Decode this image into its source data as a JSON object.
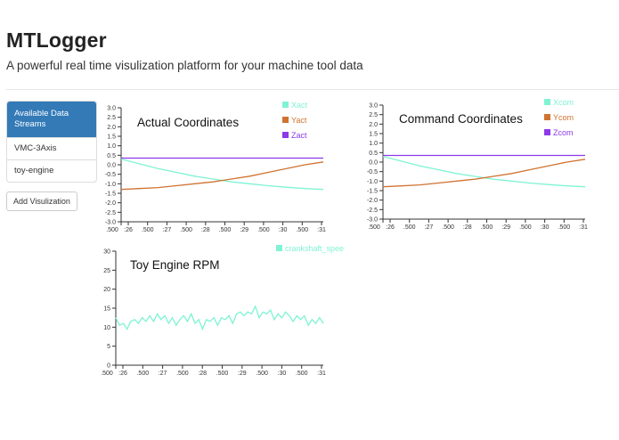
{
  "header": {
    "title": "MTLogger",
    "subtitle": "A powerful real time visulization platform for your machine tool data"
  },
  "sidebar": {
    "active_label": "Available Data Streams",
    "items": [
      {
        "label": "VMC-3Axis"
      },
      {
        "label": "toy-engine"
      }
    ],
    "add_button_label": "Add Visulization"
  },
  "colors": {
    "accent": "#337ab7",
    "cyan": "#7ff3d3",
    "orange": "#d07331",
    "purple": "#8b3be8"
  },
  "chart_data": [
    {
      "id": "actual",
      "type": "line",
      "title": "Actual Coordinates",
      "ylim": [
        -3.0,
        3.0
      ],
      "yticks": [
        "3.0",
        "2.5",
        "2.0",
        "1.5",
        "1.0",
        "0.5",
        "0.0",
        "-0.5",
        "-1.0",
        "-1.5",
        "-2.0",
        "-2.5",
        "-3.0"
      ],
      "xticks": [
        ":26",
        ".500",
        ":27",
        ".500",
        ":28",
        ".500",
        ":29",
        ".500",
        ":30",
        ".500",
        ":31"
      ],
      "x_origin_label": ".500",
      "series": [
        {
          "name": "Xact",
          "color": "#7ff3d3",
          "values": [
            0.3,
            0.05,
            -0.2,
            -0.4,
            -0.6,
            -0.75,
            -0.9,
            -1.0,
            -1.1,
            -1.18,
            -1.25,
            -1.3
          ]
        },
        {
          "name": "Yact",
          "color": "#d07331",
          "values": [
            -1.3,
            -1.25,
            -1.2,
            -1.1,
            -1.0,
            -0.9,
            -0.75,
            -0.6,
            -0.4,
            -0.2,
            0.0,
            0.15
          ]
        },
        {
          "name": "Zact",
          "color": "#8b3be8",
          "values": [
            0.35,
            0.35,
            0.35,
            0.35,
            0.35,
            0.35,
            0.35,
            0.35,
            0.35,
            0.35,
            0.35,
            0.35
          ]
        }
      ]
    },
    {
      "id": "command",
      "type": "line",
      "title": "Command Coordinates",
      "ylim": [
        -3.0,
        3.0
      ],
      "yticks": [
        "3.0",
        "2.5",
        "2.0",
        "1.5",
        "1.0",
        "0.5",
        "0.0",
        "-0.5",
        "-1.0",
        "-1.5",
        "-2.0",
        "-2.5",
        "-3.0"
      ],
      "xticks": [
        ":26",
        ".500",
        ":27",
        ".500",
        ":28",
        ".500",
        ":29",
        ".500",
        ":30",
        ".500",
        ":31"
      ],
      "x_origin_label": ".500",
      "series": [
        {
          "name": "Xcom",
          "color": "#7ff3d3",
          "values": [
            0.3,
            0.05,
            -0.2,
            -0.4,
            -0.6,
            -0.75,
            -0.9,
            -1.0,
            -1.1,
            -1.18,
            -1.25,
            -1.3
          ]
        },
        {
          "name": "Ycom",
          "color": "#d07331",
          "values": [
            -1.3,
            -1.25,
            -1.2,
            -1.1,
            -1.0,
            -0.9,
            -0.75,
            -0.6,
            -0.4,
            -0.2,
            0.0,
            0.15
          ]
        },
        {
          "name": "Zcom",
          "color": "#8b3be8",
          "values": [
            0.35,
            0.35,
            0.35,
            0.35,
            0.35,
            0.35,
            0.35,
            0.35,
            0.35,
            0.35,
            0.35,
            0.35
          ]
        }
      ]
    },
    {
      "id": "rpm",
      "type": "line",
      "title": "Toy Engine RPM",
      "ylim": [
        0,
        30
      ],
      "yticks": [
        "30",
        "25",
        "20",
        "15",
        "10",
        "5",
        "0"
      ],
      "xticks": [
        ":26",
        ".500",
        ":27",
        ".500",
        ":28",
        ".500",
        ":29",
        ".500",
        ":30",
        ".500",
        ":31"
      ],
      "x_origin_label": ".500",
      "series": [
        {
          "name": "crankshaft_spee",
          "color": "#7ff3d3",
          "values": [
            12.5,
            10.5,
            11,
            9.5,
            11.5,
            12,
            11,
            12.5,
            11.5,
            13,
            11.5,
            13.5,
            12,
            13,
            11,
            12.5,
            10.5,
            12,
            13,
            11.5,
            13.5,
            11,
            12,
            9.5,
            12,
            11.5,
            12.5,
            10.5,
            12.5,
            12,
            13,
            11,
            13.5,
            14,
            13,
            14,
            13.5,
            15.5,
            12.5,
            14,
            13.5,
            14.5,
            12,
            13.5,
            12.5,
            14,
            13,
            11.5,
            13,
            12,
            13,
            10.5,
            12,
            11,
            12.5,
            11
          ]
        }
      ]
    }
  ]
}
